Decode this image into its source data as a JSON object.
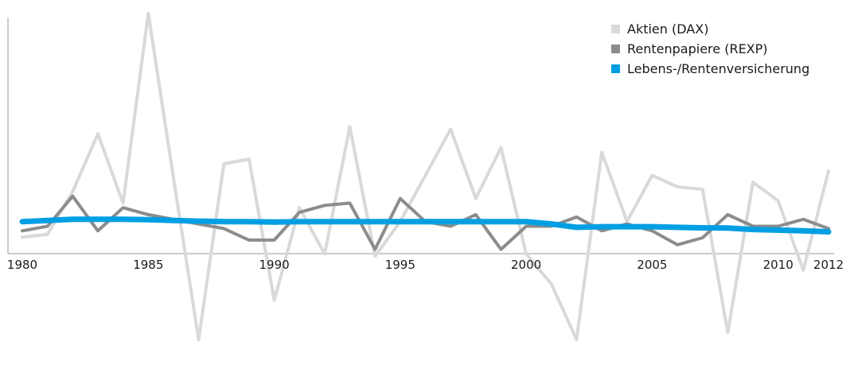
{
  "chart_data": {
    "type": "line",
    "x": [
      1980,
      1981,
      1982,
      1983,
      1984,
      1985,
      1986,
      1987,
      1988,
      1989,
      1990,
      1991,
      1992,
      1993,
      1994,
      1995,
      1996,
      1997,
      1998,
      1999,
      2000,
      2001,
      2002,
      2003,
      2004,
      2005,
      2006,
      2007,
      2008,
      2009,
      2010,
      2011,
      2012
    ],
    "x_ticks": [
      1980,
      1985,
      1990,
      1995,
      2000,
      2005,
      2010,
      2012
    ],
    "ylim": [
      -55,
      98
    ],
    "grid": false,
    "legend_position": "top-right",
    "series": [
      {
        "name": "Aktien (DAX)",
        "color": "#d9d9d9",
        "values": [
          0.3,
          1.5,
          20,
          45,
          15,
          97,
          26,
          -44,
          32,
          34,
          -27,
          13,
          -7,
          48,
          -8,
          7,
          27,
          47,
          17,
          39,
          -7,
          -20,
          -44,
          37,
          7,
          27,
          22,
          21,
          -41,
          24,
          16,
          -14,
          29
        ]
      },
      {
        "name": "Rentenpapiere (REXP)",
        "color": "#8c8c8c",
        "values": [
          3,
          5,
          18,
          3,
          13,
          10,
          8,
          6,
          4,
          -1,
          -1,
          11,
          14,
          15,
          -5,
          17,
          7,
          5,
          10,
          -5,
          5,
          5,
          9,
          3,
          6,
          3,
          -3,
          0,
          10,
          5,
          5,
          8,
          4
        ]
      },
      {
        "name": "Lebens-/Rentenversicherung",
        "color": "#009fe3",
        "values": [
          7,
          7.5,
          8,
          8,
          8,
          7.8,
          7.5,
          7.2,
          7,
          7,
          6.8,
          7,
          7,
          7,
          7,
          7,
          7,
          7,
          7,
          7,
          7,
          6,
          4.5,
          4.8,
          4.8,
          4.8,
          4.5,
          4.3,
          4.2,
          3.6,
          3.3,
          3.0,
          2.6
        ]
      }
    ]
  }
}
